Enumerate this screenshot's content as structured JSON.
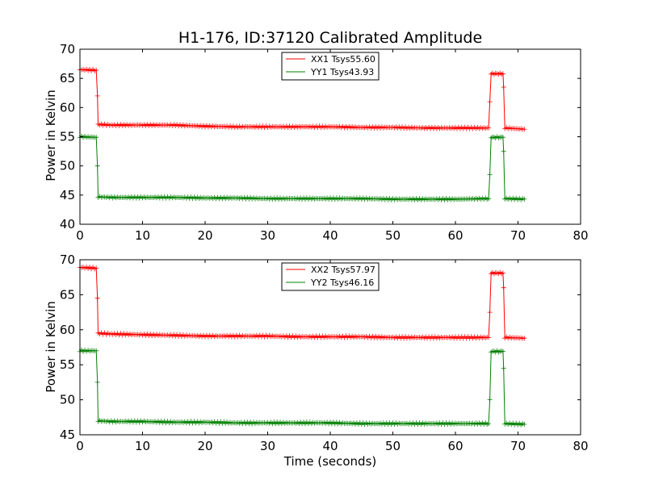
{
  "chart_data": [
    {
      "type": "line",
      "title": "H1-176, ID:37120 Calibrated Amplitude",
      "xlabel": "",
      "ylabel": "Power in Kelvin",
      "xlim": [
        0,
        80
      ],
      "ylim": [
        40,
        70
      ],
      "xticks": [
        0,
        10,
        20,
        30,
        40,
        50,
        60,
        70,
        80
      ],
      "yticks": [
        40,
        45,
        50,
        55,
        60,
        65,
        70
      ],
      "grid": false,
      "legend_position": "top-center",
      "marker": "+",
      "series": [
        {
          "name": "XX1 Tsys55.60",
          "color": "#ff0000",
          "x": [
            0,
            2.6,
            2.8,
            2.9,
            5,
            10,
            15,
            20,
            25,
            30,
            35,
            40,
            45,
            50,
            55,
            60,
            65.3,
            65.5,
            65.7,
            67.6,
            67.7,
            67.9,
            71
          ],
          "y": [
            66.5,
            66.4,
            62.0,
            57.1,
            57.0,
            57.0,
            57.0,
            56.8,
            56.7,
            56.7,
            56.7,
            56.7,
            56.6,
            56.6,
            56.5,
            56.5,
            56.5,
            61.0,
            65.8,
            65.8,
            63.5,
            56.5,
            56.3
          ]
        },
        {
          "name": "YY1 Tsys43.93",
          "color": "#008000",
          "x": [
            0,
            2.6,
            2.8,
            2.9,
            5,
            10,
            15,
            20,
            25,
            30,
            35,
            40,
            45,
            50,
            55,
            60,
            65.3,
            65.5,
            65.7,
            67.6,
            67.7,
            67.9,
            71
          ],
          "y": [
            55.0,
            54.9,
            50.0,
            44.7,
            44.6,
            44.6,
            44.6,
            44.5,
            44.5,
            44.4,
            44.4,
            44.4,
            44.4,
            44.3,
            44.3,
            44.3,
            44.4,
            48.5,
            54.9,
            54.9,
            52.5,
            44.4,
            44.3
          ]
        }
      ]
    },
    {
      "type": "line",
      "title": "",
      "xlabel": "Time (seconds)",
      "ylabel": "Power in Kelvin",
      "xlim": [
        0,
        80
      ],
      "ylim": [
        45,
        70
      ],
      "xticks": [
        0,
        10,
        20,
        30,
        40,
        50,
        60,
        70,
        80
      ],
      "yticks": [
        45,
        50,
        55,
        60,
        65,
        70
      ],
      "grid": false,
      "legend_position": "top-center",
      "marker": "+",
      "series": [
        {
          "name": "XX2 Tsys57.97",
          "color": "#ff0000",
          "x": [
            0,
            2.6,
            2.8,
            2.9,
            5,
            10,
            15,
            20,
            25,
            30,
            35,
            40,
            45,
            50,
            55,
            60,
            65.3,
            65.5,
            65.7,
            67.6,
            67.7,
            67.9,
            71
          ],
          "y": [
            68.9,
            68.8,
            64.5,
            59.5,
            59.4,
            59.3,
            59.2,
            59.1,
            59.1,
            59.1,
            59.0,
            59.0,
            59.0,
            58.9,
            58.9,
            58.9,
            58.9,
            62.5,
            68.1,
            68.1,
            66.0,
            58.9,
            58.8
          ]
        },
        {
          "name": "YY2 Tsys46.16",
          "color": "#008000",
          "x": [
            0,
            2.6,
            2.8,
            2.9,
            5,
            10,
            15,
            20,
            25,
            30,
            35,
            40,
            45,
            50,
            55,
            60,
            65.3,
            65.5,
            65.7,
            67.6,
            67.7,
            67.9,
            71
          ],
          "y": [
            57.0,
            57.0,
            52.5,
            47.0,
            46.9,
            46.9,
            46.8,
            46.8,
            46.7,
            46.7,
            46.7,
            46.7,
            46.6,
            46.6,
            46.6,
            46.6,
            46.6,
            50.0,
            56.9,
            56.9,
            54.5,
            46.6,
            46.5
          ]
        }
      ]
    }
  ]
}
